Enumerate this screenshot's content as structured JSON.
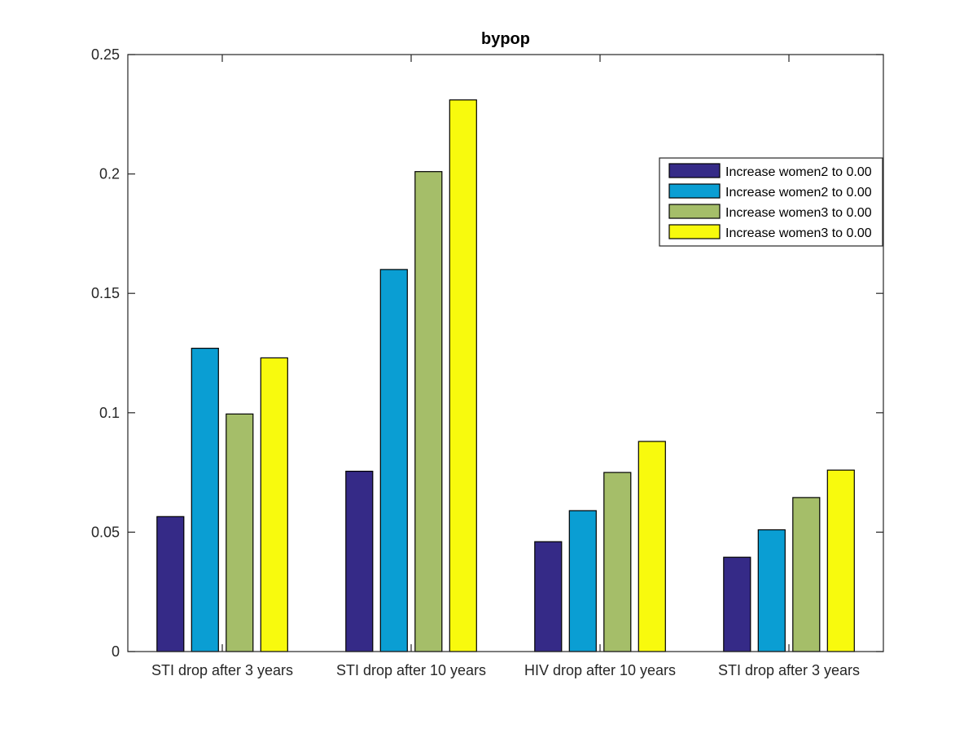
{
  "chart_data": {
    "type": "bar",
    "title": "bypop",
    "xlabel": "",
    "ylabel": "",
    "categories": [
      "STI drop after 3 years",
      "STI drop after 10 years",
      "HIV drop after 10 years",
      "STI drop after 3 years"
    ],
    "ylim": [
      0,
      0.25
    ],
    "yticks": [
      0,
      0.05,
      0.1,
      0.15,
      0.2,
      0.25
    ],
    "ytick_labels": [
      "0",
      "0.05",
      "0.1",
      "0.15",
      "0.2",
      "0.25"
    ],
    "grid": false,
    "legend_position": "top-right",
    "series": [
      {
        "name": "Increase women2 to 0.00",
        "color": "#352a87",
        "values": [
          0.0565,
          0.0755,
          0.046,
          0.0395
        ]
      },
      {
        "name": "Increase women2 to 0.00",
        "color": "#0a9ed3",
        "values": [
          0.127,
          0.16,
          0.059,
          0.051
        ]
      },
      {
        "name": "Increase women3 to 0.00",
        "color": "#a5be69",
        "values": [
          0.0995,
          0.201,
          0.075,
          0.0645
        ]
      },
      {
        "name": "Increase women3 to 0.00",
        "color": "#f8fa0d",
        "values": [
          0.123,
          0.231,
          0.088,
          0.076
        ]
      }
    ]
  }
}
